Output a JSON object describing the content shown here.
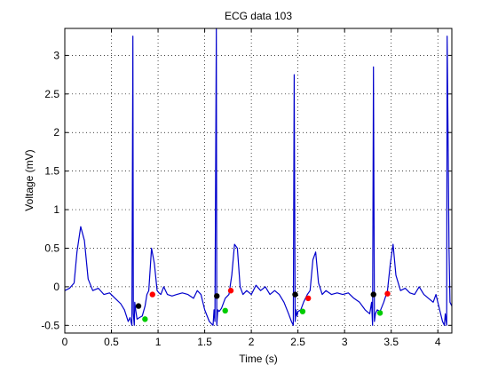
{
  "chart_data": {
    "type": "line",
    "title": "ECG data 103",
    "xlabel": "Time (s)",
    "ylabel": "Voltage (mV)",
    "xlim": [
      0,
      4.15
    ],
    "ylim": [
      -0.6,
      3.35
    ],
    "xticks": [
      0,
      0.5,
      1,
      1.5,
      2,
      2.5,
      3,
      3.5,
      4
    ],
    "xtick_labels": [
      "0",
      "0.5",
      "1",
      "1.5",
      "2",
      "2.5",
      "3",
      "3.5",
      "4"
    ],
    "yticks": [
      -0.5,
      0,
      0.5,
      1,
      1.5,
      2,
      2.5,
      3
    ],
    "ytick_labels": [
      "-0.5",
      "0",
      "0.5",
      "1",
      "1.5",
      "2",
      "2.5",
      "3"
    ],
    "grid": true,
    "line_color": "#0000cc",
    "series": [
      {
        "name": "ECG",
        "x": [
          0,
          0.05,
          0.1,
          0.13,
          0.17,
          0.21,
          0.25,
          0.3,
          0.36,
          0.42,
          0.48,
          0.54,
          0.6,
          0.64,
          0.68,
          0.7,
          0.72,
          0.73,
          0.735,
          0.745,
          0.75,
          0.76,
          0.775,
          0.8,
          0.83,
          0.86,
          0.88,
          0.9,
          0.93,
          0.96,
          0.99,
          1.01,
          1.03,
          1.06,
          1.1,
          1.15,
          1.2,
          1.26,
          1.32,
          1.38,
          1.42,
          1.46,
          1.5,
          1.55,
          1.59,
          1.6,
          1.61,
          1.625,
          1.63,
          1.64,
          1.655,
          1.68,
          1.72,
          1.76,
          1.79,
          1.82,
          1.85,
          1.88,
          1.91,
          1.95,
          2.0,
          2.05,
          2.1,
          2.15,
          2.2,
          2.25,
          2.3,
          2.35,
          2.4,
          2.43,
          2.45,
          2.46,
          2.47,
          2.48,
          2.49,
          2.5,
          2.53,
          2.56,
          2.6,
          2.63,
          2.66,
          2.69,
          2.72,
          2.76,
          2.8,
          2.86,
          2.92,
          2.98,
          3.04,
          3.1,
          3.16,
          3.22,
          3.27,
          3.29,
          3.3,
          3.31,
          3.32,
          3.33,
          3.35,
          3.38,
          3.42,
          3.46,
          3.49,
          3.52,
          3.55,
          3.6,
          3.65,
          3.7,
          3.75,
          3.8,
          3.85,
          3.9,
          3.95,
          3.98,
          4.02,
          4.05,
          4.07,
          4.08,
          4.095,
          4.1,
          4.11,
          4.12,
          4.13,
          4.15
        ],
        "values": [
          -0.05,
          -0.02,
          0.05,
          0.45,
          0.78,
          0.6,
          0.1,
          -0.05,
          -0.02,
          -0.1,
          -0.08,
          -0.15,
          -0.22,
          -0.3,
          -0.45,
          -0.4,
          -0.5,
          3.25,
          -0.35,
          -0.5,
          -0.2,
          -0.3,
          -0.42,
          -0.4,
          -0.38,
          -0.25,
          -0.1,
          -0.05,
          0.5,
          0.3,
          -0.05,
          -0.08,
          -0.1,
          0.0,
          -0.1,
          -0.12,
          -0.1,
          -0.08,
          -0.1,
          -0.15,
          -0.05,
          -0.1,
          -0.3,
          -0.45,
          -0.5,
          -0.3,
          -0.45,
          3.35,
          -0.5,
          -0.3,
          -0.32,
          -0.28,
          -0.15,
          -0.1,
          0.15,
          0.55,
          0.5,
          0.0,
          -0.1,
          -0.05,
          -0.1,
          0.02,
          -0.05,
          0.0,
          -0.1,
          -0.05,
          -0.1,
          -0.2,
          -0.35,
          -0.45,
          -0.5,
          2.75,
          -0.45,
          -0.3,
          -0.38,
          -0.32,
          -0.3,
          -0.2,
          -0.1,
          -0.05,
          0.35,
          0.45,
          0.05,
          -0.1,
          -0.05,
          -0.1,
          -0.08,
          -0.1,
          -0.08,
          -0.15,
          -0.2,
          -0.3,
          -0.35,
          -0.2,
          -0.5,
          2.85,
          -0.45,
          -0.35,
          -0.3,
          -0.32,
          -0.2,
          -0.05,
          0.3,
          0.55,
          0.15,
          -0.05,
          -0.02,
          -0.08,
          -0.1,
          0.0,
          -0.1,
          -0.15,
          -0.2,
          -0.1,
          -0.3,
          -0.45,
          -0.5,
          -0.35,
          -0.5,
          3.25,
          1.9,
          0.5,
          -0.2,
          -0.25
        ]
      }
    ],
    "markers": [
      {
        "name": "black",
        "color": "#000000",
        "x": [
          0.79,
          1.63,
          2.47,
          3.31
        ],
        "y": [
          -0.25,
          -0.12,
          -0.1,
          -0.1
        ]
      },
      {
        "name": "red",
        "color": "#ff0000",
        "x": [
          0.94,
          1.78,
          2.61,
          3.46
        ],
        "y": [
          -0.1,
          -0.05,
          -0.15,
          -0.09
        ]
      },
      {
        "name": "green",
        "color": "#00cc00",
        "x": [
          0.86,
          1.72,
          2.55,
          3.38
        ],
        "y": [
          -0.42,
          -0.31,
          -0.32,
          -0.34
        ]
      }
    ]
  }
}
